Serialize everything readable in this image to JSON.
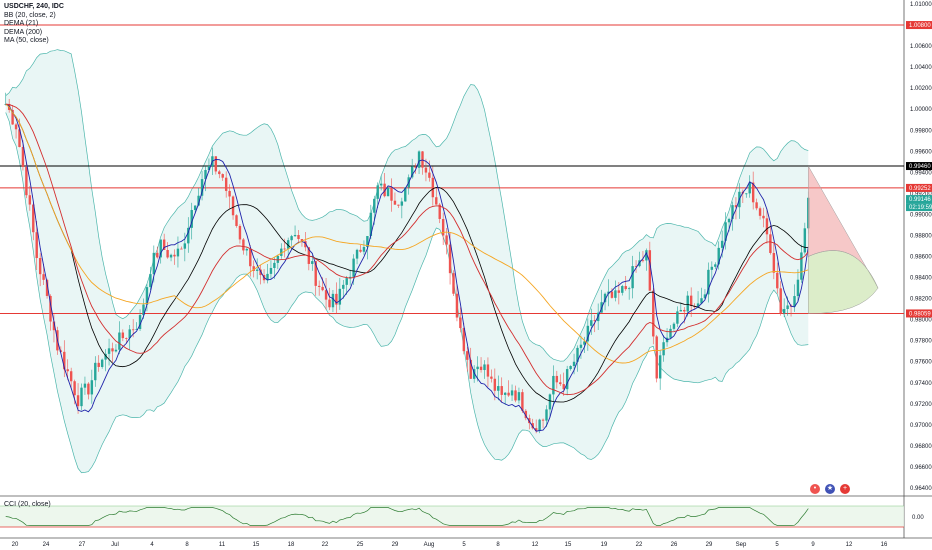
{
  "legend": {
    "symbol": "USDCHF, 240, IDC",
    "indicators": [
      "BB (20, close, 2)",
      "DEMA (21)",
      "DEMA (200)",
      "MA (50, close)"
    ]
  },
  "oscillator": {
    "label": "CCI (20, close)",
    "tick": "0.00"
  },
  "price_axis": {
    "ticks": [
      "1.01000",
      "1.00800",
      "1.00600",
      "1.00400",
      "1.00200",
      "1.00000",
      "0.99800",
      "0.99600",
      "0.99400",
      "0.99200",
      "0.99000",
      "0.98800",
      "0.98600",
      "0.98400",
      "0.98200",
      "0.98000",
      "0.97800",
      "0.97600",
      "0.97400",
      "0.97200",
      "0.97000",
      "0.96800",
      "0.96600",
      "0.96400"
    ],
    "price_tags": [
      {
        "label": "1.00800",
        "color": "#e53935"
      },
      {
        "label": "0.99460",
        "color": "#000000"
      },
      {
        "label": "0.99252",
        "color": "#e53935"
      },
      {
        "label": "0.99146",
        "color": "#26a69a"
      },
      {
        "label": "02:19:59",
        "color": "#26a69a"
      },
      {
        "label": "0.98059",
        "color": "#e53935"
      }
    ]
  },
  "time_axis": {
    "ticks": [
      "20",
      "24",
      "27",
      "Jul",
      "4",
      "8",
      "11",
      "15",
      "18",
      "22",
      "25",
      "29",
      "Aug",
      "5",
      "8",
      "12",
      "15",
      "19",
      "22",
      "26",
      "29",
      "Sep",
      "5",
      "9",
      "12",
      "16"
    ]
  },
  "colors": {
    "up": "#26a69a",
    "down": "#ef5350",
    "bb_fill": "#e0f2f1",
    "bb_line": "#4db6ac",
    "dema21": "#1e22aa",
    "dema200": "#d32f2f",
    "ma50": "#f5a623",
    "basis": "#000000"
  },
  "chart_data": {
    "type": "line",
    "title": "USDCHF, 240, IDC",
    "ylim": [
      0.964,
      1.01
    ],
    "levels": [
      {
        "price": 1.008,
        "color": "#e53935"
      },
      {
        "price": 0.9946,
        "color": "#000000"
      },
      {
        "price": 0.99252,
        "color": "#e53935"
      },
      {
        "price": 0.98059,
        "color": "#e53935"
      }
    ],
    "price_keypoints": [
      [
        0,
        1.0005
      ],
      [
        3,
        0.9985
      ],
      [
        6,
        0.9925
      ],
      [
        9,
        0.986
      ],
      [
        12,
        0.982
      ],
      [
        15,
        0.9775
      ],
      [
        18,
        0.975
      ],
      [
        21,
        0.9725
      ],
      [
        24,
        0.9735
      ],
      [
        27,
        0.976
      ],
      [
        30,
        0.977
      ],
      [
        33,
        0.978
      ],
      [
        36,
        0.979
      ],
      [
        39,
        0.98
      ],
      [
        42,
        0.985
      ],
      [
        45,
        0.987
      ],
      [
        48,
        0.986
      ],
      [
        51,
        0.9865
      ],
      [
        54,
        0.9905
      ],
      [
        57,
        0.9935
      ],
      [
        60,
        0.9948
      ],
      [
        63,
        0.9935
      ],
      [
        66,
        0.99
      ],
      [
        69,
        0.987
      ],
      [
        72,
        0.985
      ],
      [
        75,
        0.983
      ],
      [
        78,
        0.985
      ],
      [
        81,
        0.9875
      ],
      [
        84,
        0.9885
      ],
      [
        87,
        0.9865
      ],
      [
        90,
        0.984
      ],
      [
        93,
        0.982
      ],
      [
        96,
        0.9815
      ],
      [
        99,
        0.984
      ],
      [
        102,
        0.986
      ],
      [
        105,
        0.9885
      ],
      [
        108,
        0.9925
      ],
      [
        111,
        0.992
      ],
      [
        114,
        0.9915
      ],
      [
        117,
        0.993
      ],
      [
        120,
        0.996
      ],
      [
        123,
        0.9935
      ],
      [
        126,
        0.99
      ],
      [
        129,
        0.985
      ],
      [
        132,
        0.979
      ],
      [
        135,
        0.975
      ],
      [
        138,
        0.976
      ],
      [
        141,
        0.974
      ],
      [
        144,
        0.9725
      ],
      [
        147,
        0.9735
      ],
      [
        150,
        0.972
      ],
      [
        153,
        0.97
      ],
      [
        156,
        0.9705
      ],
      [
        159,
        0.974
      ],
      [
        162,
        0.974
      ],
      [
        165,
        0.976
      ],
      [
        168,
        0.978
      ],
      [
        171,
        0.98
      ],
      [
        174,
        0.982
      ],
      [
        177,
        0.982
      ],
      [
        180,
        0.983
      ],
      [
        183,
        0.985
      ],
      [
        186,
        0.9862
      ],
      [
        189,
        0.9745
      ],
      [
        192,
        0.979
      ],
      [
        195,
        0.98
      ],
      [
        198,
        0.982
      ],
      [
        201,
        0.9815
      ],
      [
        204,
        0.984
      ],
      [
        207,
        0.987
      ],
      [
        210,
        0.99
      ],
      [
        213,
        0.9915
      ],
      [
        216,
        0.9925
      ],
      [
        219,
        0.99
      ],
      [
        222,
        0.987
      ],
      [
        225,
        0.981
      ],
      [
        228,
        0.9815
      ],
      [
        231,
        0.986
      ],
      [
        233,
        0.9915
      ]
    ],
    "xlabel": "",
    "ylabel": ""
  }
}
